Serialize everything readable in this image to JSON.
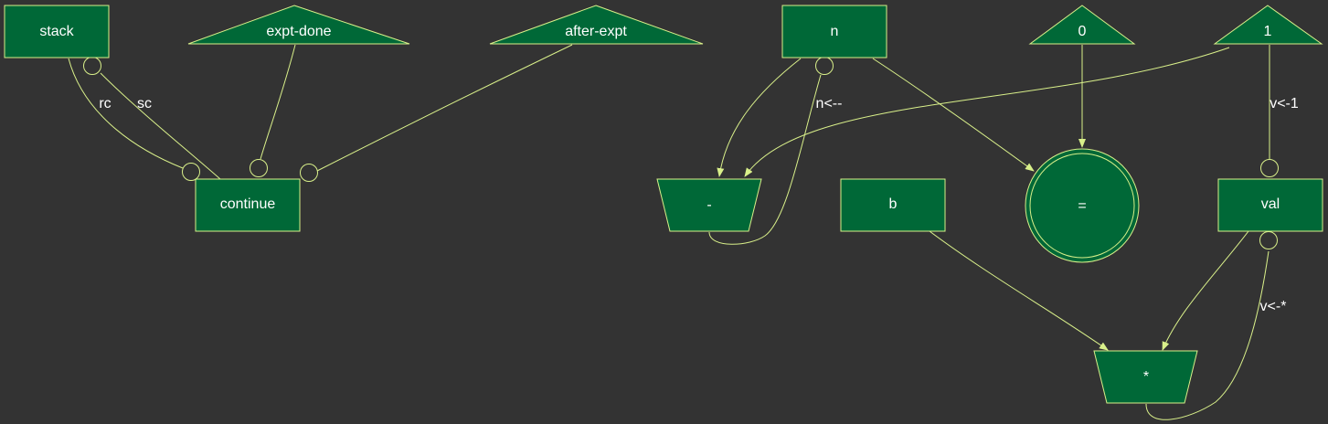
{
  "colors": {
    "background": "#333333",
    "node_fill": "#006837",
    "line": "#d9f08a",
    "text": "#ffffff"
  },
  "nodes": {
    "stack": "stack",
    "expt_done": "expt-done",
    "after_expt": "after-expt",
    "continue": "continue",
    "n": "n",
    "zero": "0",
    "one": "1",
    "minus": "-",
    "b": "b",
    "equals": "=",
    "val": "val",
    "times": "*"
  },
  "edge_labels": {
    "rc": "rc",
    "sc": "sc",
    "n_minus": "n<--",
    "v_one": "v<-1",
    "v_times": "v<-*"
  }
}
